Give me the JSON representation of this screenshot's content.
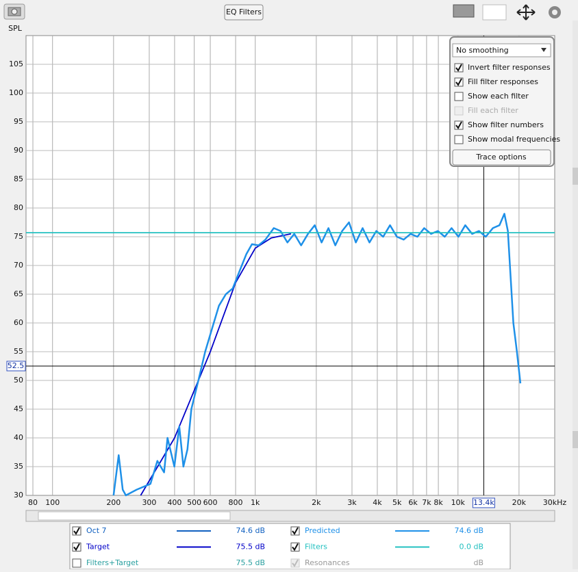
{
  "toolbar": {
    "button": "EQ Filters"
  },
  "chart_data": {
    "type": "line",
    "y_label": "SPL",
    "xlim": [
      74,
      30000
    ],
    "ylim": [
      30,
      110
    ],
    "log_x": true,
    "grid": true,
    "xticks": [
      80,
      100,
      200,
      300,
      400,
      500,
      600,
      800,
      {
        "value": 1000,
        "label": "1k"
      },
      {
        "value": 2000,
        "label": "2k"
      },
      {
        "value": 3000,
        "label": "3k"
      },
      {
        "value": 4000,
        "label": "4k"
      },
      {
        "value": 5000,
        "label": "5k"
      },
      {
        "value": 6000,
        "label": "6k"
      },
      {
        "value": 7000,
        "label": "7k"
      },
      {
        "value": 8000,
        "label": "8k"
      },
      {
        "value": 10000,
        "label": "10k"
      },
      {
        "value": 20000,
        "label": "20k"
      },
      {
        "value": 30000,
        "label": "30kHz"
      }
    ],
    "yticks": [
      30,
      35,
      40,
      45,
      50,
      55,
      60,
      65,
      70,
      75,
      80,
      85,
      90,
      95,
      100,
      105
    ],
    "cursor": {
      "x": {
        "value": 13400,
        "label": "13.4k"
      },
      "y": 52.5
    },
    "series": [
      {
        "name": "Oct 7",
        "color": "#1060c0",
        "checked": true,
        "readout": "74.6 dB"
      },
      {
        "name": "Target",
        "color": "#0000c8",
        "checked": true,
        "readout": "75.5 dB",
        "x": [
          272,
          400,
          600,
          800,
          1000,
          1200,
          1500
        ],
        "values": [
          30,
          40,
          55,
          67,
          73,
          74.8,
          75.5
        ]
      },
      {
        "name": "Filters+Target",
        "checked": false,
        "readout": "75.5 dB"
      },
      {
        "name": "Predicted",
        "color": "#1e90e8",
        "checked": true,
        "readout": "74.6 dB",
        "x": [
          200,
          212,
          222,
          230,
          260,
          304,
          329,
          355,
          369,
          399,
          422,
          442,
          463,
          484,
          524,
          566,
          612,
          662,
          716,
          774,
          836,
          904,
          963,
          1038,
          1123,
          1234,
          1333,
          1441,
          1557,
          1683,
          1819,
          1966,
          2125,
          2296,
          2481,
          2682,
          2899,
          3133,
          3386,
          3660,
          3955,
          4275,
          4620,
          4994,
          5397,
          5833,
          6305,
          6814,
          7364,
          7959,
          8602,
          9297,
          10048,
          10860,
          11737,
          12686,
          13711,
          14860,
          16015,
          16931,
          17617,
          18180,
          18760,
          19525,
          20320
        ],
        "values": [
          30,
          37,
          31,
          30,
          31,
          32,
          36,
          34,
          40,
          35,
          42,
          35,
          38,
          45,
          50,
          55,
          59,
          63,
          65,
          66,
          69,
          72,
          73.7,
          73.5,
          74.5,
          76.5,
          76,
          74,
          75.5,
          73.5,
          75.5,
          77,
          74,
          76.5,
          73.5,
          76,
          77.5,
          74,
          76.5,
          74,
          76,
          75,
          77,
          75,
          74.5,
          75.5,
          75,
          76.5,
          75.5,
          76,
          75,
          76.5,
          75,
          77,
          75.5,
          76,
          75,
          76.5,
          77,
          79,
          76,
          68,
          60,
          55,
          49.5
        ]
      },
      {
        "name": "Filters",
        "color": "#22c0c0",
        "checked": true,
        "readout": "0.0 dB",
        "x": [
          74,
          30000
        ],
        "values": [
          75.7,
          75.7
        ]
      },
      {
        "name": "Resonances",
        "checked": true,
        "disabled": true,
        "readout": "dB"
      }
    ]
  },
  "options": {
    "smoothing": "No smoothing",
    "checkboxes": [
      {
        "label": "Invert filter responses",
        "checked": true
      },
      {
        "label": "Fill filter responses",
        "checked": true
      },
      {
        "label": "Show each filter",
        "checked": false
      },
      {
        "label": "Fill each filter",
        "checked": false,
        "disabled": true
      },
      {
        "label": "Show filter numbers",
        "checked": true
      },
      {
        "label": "Show modal frequencies",
        "checked": false
      }
    ],
    "button": "Trace options"
  }
}
